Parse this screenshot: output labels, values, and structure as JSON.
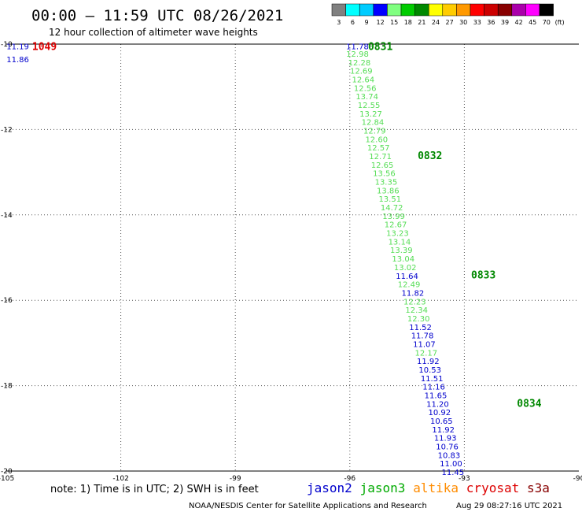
{
  "title": "00:00 – 11:59 UTC 08/26/2021",
  "subtitle": "12 hour collection of altimeter wave heights",
  "note": "note:  1) Time is in UTC;  2) SWH is in feet",
  "credit_left": "NOAA/NESDIS Center for Satellite Applications and Research",
  "credit_right": "Aug 29 08:27:16 UTC 2021",
  "satellites": [
    {
      "name": "jason2",
      "color": "#0000cc"
    },
    {
      "name": "jason3",
      "color": "#00aa00"
    },
    {
      "name": "altika",
      "color": "#ff8c00"
    },
    {
      "name": "cryosat",
      "color": "#dd0000"
    },
    {
      "name": "s3a",
      "color": "#880000"
    }
  ],
  "color_scale": {
    "labels": [
      "3",
      "6",
      "9",
      "12",
      "15",
      "18",
      "21",
      "24",
      "27",
      "30",
      "33",
      "36",
      "39",
      "42",
      "45",
      "70"
    ],
    "unit": "(ft)",
    "colors": [
      "#808080",
      "#00ffff",
      "#00ccff",
      "#0000ff",
      "#80ff80",
      "#00cc00",
      "#008800",
      "#ffff00",
      "#ffcc00",
      "#ff9900",
      "#ff0000",
      "#cc0000",
      "#880000",
      "#aa00aa",
      "#ff00ff",
      "#000000"
    ]
  },
  "chart_data": {
    "type": "scatter",
    "title": "00:00 – 11:59 UTC 08/26/2021",
    "subtitle": "12 hour collection of altimeter wave heights",
    "xlabel": "",
    "ylabel": "",
    "xlim": [
      -105,
      -90
    ],
    "ylim": [
      -20,
      -10
    ],
    "x_ticks": [
      "-105",
      "-102",
      "-99",
      "-96",
      "-93",
      "-90"
    ],
    "y_ticks": [
      "-10",
      "-12",
      "-14",
      "-16",
      "-18",
      "-20"
    ],
    "grid": true,
    "time_markers": [
      {
        "label": "1049",
        "lon": -104.0,
        "lat": -10.05,
        "color": "#dd0000"
      },
      {
        "label": "0831",
        "lon": -95.2,
        "lat": -10.05,
        "color": "#008800"
      },
      {
        "label": "0832",
        "lon": -93.9,
        "lat": -12.6,
        "color": "#008800"
      },
      {
        "label": "0833",
        "lon": -92.5,
        "lat": -15.4,
        "color": "#008800"
      },
      {
        "label": "0834",
        "lon": -91.3,
        "lat": -18.4,
        "color": "#008800"
      }
    ],
    "series": [
      {
        "name": "cryosat",
        "color": "#0000cc",
        "points": [
          {
            "lon": -104.7,
            "lat": -10.05,
            "v": "11.19"
          },
          {
            "lon": -104.7,
            "lat": -10.35,
            "v": "11.86"
          }
        ]
      },
      {
        "name": "jason3",
        "color": "#00aa00",
        "points": [
          {
            "lon": -95.8,
            "lat": -10.05,
            "v": "11.78",
            "c": "#0000cc"
          },
          {
            "lon": -95.8,
            "lat": -10.22,
            "v": "12.98",
            "c": "#55dd55"
          },
          {
            "lon": -95.75,
            "lat": -10.42,
            "v": "12.28",
            "c": "#55dd55"
          },
          {
            "lon": -95.7,
            "lat": -10.62,
            "v": "12.69",
            "c": "#55dd55"
          },
          {
            "lon": -95.65,
            "lat": -10.82,
            "v": "12.64",
            "c": "#55dd55"
          },
          {
            "lon": -95.6,
            "lat": -11.02,
            "v": "12.56",
            "c": "#55dd55"
          },
          {
            "lon": -95.55,
            "lat": -11.22,
            "v": "13.74",
            "c": "#55dd55"
          },
          {
            "lon": -95.5,
            "lat": -11.42,
            "v": "12.55",
            "c": "#55dd55"
          },
          {
            "lon": -95.45,
            "lat": -11.62,
            "v": "13.27",
            "c": "#55dd55"
          },
          {
            "lon": -95.4,
            "lat": -11.82,
            "v": "12.84",
            "c": "#55dd55"
          },
          {
            "lon": -95.35,
            "lat": -12.02,
            "v": "12.79",
            "c": "#55dd55"
          },
          {
            "lon": -95.3,
            "lat": -12.22,
            "v": "12.60",
            "c": "#55dd55"
          },
          {
            "lon": -95.25,
            "lat": -12.42,
            "v": "12.57",
            "c": "#55dd55"
          },
          {
            "lon": -95.2,
            "lat": -12.62,
            "v": "12.71",
            "c": "#55dd55"
          },
          {
            "lon": -95.15,
            "lat": -12.82,
            "v": "12.65",
            "c": "#55dd55"
          },
          {
            "lon": -95.1,
            "lat": -13.02,
            "v": "13.56",
            "c": "#55dd55"
          },
          {
            "lon": -95.05,
            "lat": -13.22,
            "v": "13.35",
            "c": "#55dd55"
          },
          {
            "lon": -95.0,
            "lat": -13.42,
            "v": "13.86",
            "c": "#55dd55"
          },
          {
            "lon": -94.95,
            "lat": -13.62,
            "v": "13.51",
            "c": "#55dd55"
          },
          {
            "lon": -94.9,
            "lat": -13.82,
            "v": "14.72",
            "c": "#55dd55"
          },
          {
            "lon": -94.85,
            "lat": -14.02,
            "v": "13.99",
            "c": "#55dd55"
          },
          {
            "lon": -94.8,
            "lat": -14.22,
            "v": "12.67",
            "c": "#55dd55"
          },
          {
            "lon": -94.75,
            "lat": -14.42,
            "v": "13.23",
            "c": "#55dd55"
          },
          {
            "lon": -94.7,
            "lat": -14.62,
            "v": "13.14",
            "c": "#55dd55"
          },
          {
            "lon": -94.65,
            "lat": -14.82,
            "v": "13.39",
            "c": "#55dd55"
          },
          {
            "lon": -94.6,
            "lat": -15.02,
            "v": "13.04",
            "c": "#55dd55"
          },
          {
            "lon": -94.55,
            "lat": -15.22,
            "v": "13.02",
            "c": "#55dd55"
          },
          {
            "lon": -94.5,
            "lat": -15.42,
            "v": "11.64",
            "c": "#0000cc"
          },
          {
            "lon": -94.45,
            "lat": -15.62,
            "v": "12.49",
            "c": "#55dd55"
          },
          {
            "lon": -94.35,
            "lat": -15.82,
            "v": "11.82",
            "c": "#0000cc"
          },
          {
            "lon": -94.3,
            "lat": -16.02,
            "v": "12.23",
            "c": "#55dd55"
          },
          {
            "lon": -94.25,
            "lat": -16.22,
            "v": "12.34",
            "c": "#55dd55"
          },
          {
            "lon": -94.2,
            "lat": -16.42,
            "v": "12.30",
            "c": "#55dd55"
          },
          {
            "lon": -94.15,
            "lat": -16.62,
            "v": "11.52",
            "c": "#0000cc"
          },
          {
            "lon": -94.1,
            "lat": -16.82,
            "v": "11.78",
            "c": "#0000cc"
          },
          {
            "lon": -94.05,
            "lat": -17.02,
            "v": "11.07",
            "c": "#0000cc"
          },
          {
            "lon": -94.0,
            "lat": -17.22,
            "v": "12.17",
            "c": "#55dd55"
          },
          {
            "lon": -93.95,
            "lat": -17.42,
            "v": "11.92",
            "c": "#0000cc"
          },
          {
            "lon": -93.9,
            "lat": -17.62,
            "v": "10.53",
            "c": "#0000cc"
          },
          {
            "lon": -93.85,
            "lat": -17.82,
            "v": "11.51",
            "c": "#0000cc"
          },
          {
            "lon": -93.8,
            "lat": -18.02,
            "v": "11.16",
            "c": "#0000cc"
          },
          {
            "lon": -93.75,
            "lat": -18.22,
            "v": "11.65",
            "c": "#0000cc"
          },
          {
            "lon": -93.7,
            "lat": -18.42,
            "v": "11.20",
            "c": "#0000cc"
          },
          {
            "lon": -93.65,
            "lat": -18.62,
            "v": "10.92",
            "c": "#0000cc"
          },
          {
            "lon": -93.6,
            "lat": -18.82,
            "v": "10.65",
            "c": "#0000cc"
          },
          {
            "lon": -93.55,
            "lat": -19.02,
            "v": "11.92",
            "c": "#0000cc"
          },
          {
            "lon": -93.5,
            "lat": -19.22,
            "v": "11.93",
            "c": "#0000cc"
          },
          {
            "lon": -93.45,
            "lat": -19.42,
            "v": "10.76",
            "c": "#0000cc"
          },
          {
            "lon": -93.4,
            "lat": -19.62,
            "v": "10.83",
            "c": "#0000cc"
          },
          {
            "lon": -93.35,
            "lat": -19.82,
            "v": "11.00",
            "c": "#0000cc"
          },
          {
            "lon": -93.3,
            "lat": -20.02,
            "v": "11.45",
            "c": "#0000cc"
          }
        ]
      }
    ]
  }
}
